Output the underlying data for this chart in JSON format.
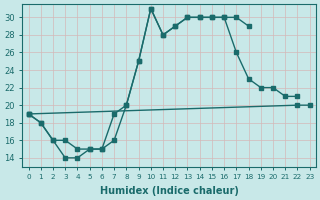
{
  "xlabel": "Humidex (Indice chaleur)",
  "bg_color": "#c8e8e8",
  "grid_color": "#b8d8d8",
  "line_color": "#1a6b6b",
  "xlim": [
    -0.5,
    23.5
  ],
  "ylim": [
    13,
    31.5
  ],
  "series1_x": [
    0,
    1,
    2,
    3,
    4,
    5,
    6,
    7,
    8,
    9,
    10,
    11,
    12,
    13,
    14,
    15,
    16,
    17,
    18
  ],
  "series1_y": [
    19,
    18,
    16,
    14,
    14,
    15,
    15,
    16,
    20,
    25,
    31,
    28,
    29,
    30,
    30,
    30,
    30,
    30,
    29
  ],
  "series2_x": [
    0,
    1,
    2,
    3,
    4,
    5,
    6,
    7,
    8,
    9,
    10,
    11,
    12,
    13,
    14,
    15,
    16,
    17,
    18,
    19,
    20,
    21,
    22
  ],
  "series2_y": [
    19,
    18,
    16,
    16,
    15,
    15,
    15,
    19,
    20,
    25,
    31,
    28,
    29,
    30,
    30,
    30,
    30,
    26,
    23,
    22,
    22,
    21,
    21
  ],
  "series3_x": [
    0,
    22,
    23
  ],
  "series3_y": [
    19,
    20,
    20
  ],
  "yticks": [
    14,
    16,
    18,
    20,
    22,
    24,
    26,
    28,
    30
  ]
}
